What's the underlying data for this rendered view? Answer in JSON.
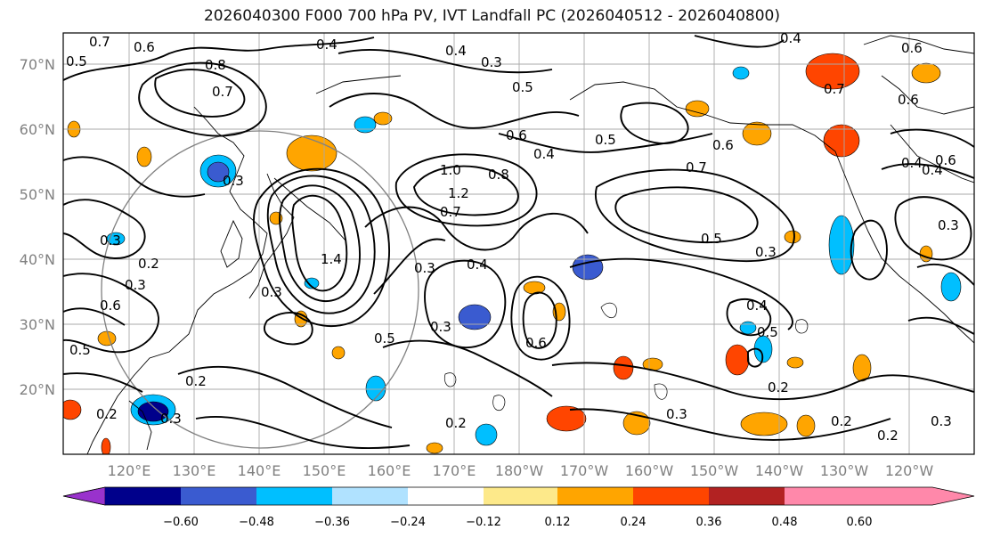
{
  "title": "2026040300 F000 700 hPa PV, IVT Landfall PC (2026040512 - 2026040800)",
  "latitude_labels": [
    "70°N",
    "60°N",
    "50°N",
    "40°N",
    "30°N",
    "20°N"
  ],
  "longitude_labels": [
    "120°E",
    "130°E",
    "140°E",
    "150°E",
    "160°E",
    "170°E",
    "180°W",
    "170°W",
    "160°W",
    "150°W",
    "140°W",
    "130°W",
    "120°W"
  ],
  "colorbar": {
    "tick_labels": [
      "−0.60",
      "−0.48",
      "−0.36",
      "−0.24",
      "−0.12",
      "0.12",
      "0.24",
      "0.36",
      "0.48",
      "0.60"
    ],
    "colors": [
      "#9932cc",
      "#00008b",
      "#3a5bd0",
      "#00bfff",
      "#b0e2ff",
      "#ffffff",
      "#fde98a",
      "#ffa500",
      "#ff4500",
      "#b22222",
      "#ff88aa"
    ]
  },
  "contour_labels": [
    "0.7",
    "0.6",
    "0.4",
    "0.5",
    "0.8",
    "0.7",
    "0.4",
    "0.3",
    "0.5",
    "0.4",
    "0.6",
    "0.7",
    "0.6",
    "0.4",
    "0.3",
    "0.6",
    "0.5",
    "0.4",
    "0.6",
    "0.7",
    "1.0",
    "0.8",
    "1.2",
    "0.7",
    "0.5",
    "0.3",
    "0.4",
    "0.3",
    "0.3",
    "0.5",
    "0.3",
    "0.6",
    "0.4",
    "0.5",
    "0.3",
    "0.2",
    "0.2",
    "0.3",
    "0.2",
    "0.3",
    "0.2",
    "0.2",
    "0.3",
    "0.4",
    "0.2",
    "1.4",
    "0.3",
    "0.5",
    "0.6",
    "0.3",
    "0.6",
    "0.2"
  ]
}
